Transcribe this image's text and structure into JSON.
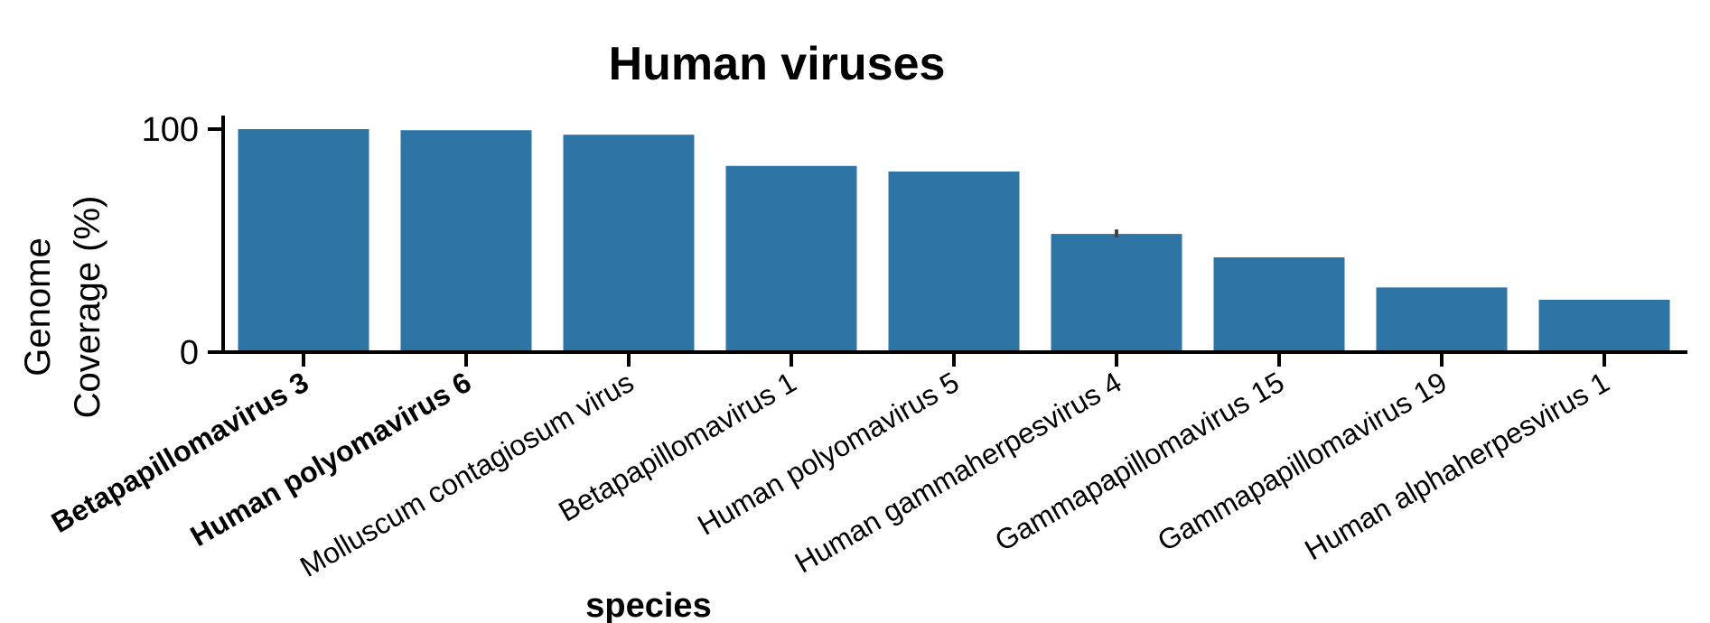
{
  "chart_data": {
    "type": "bar",
    "title": "Human viruses",
    "xlabel": "species",
    "ylabel_lines": [
      "Genome",
      "Coverage (%)"
    ],
    "ylim": [
      0,
      100
    ],
    "yticks": [
      0,
      100
    ],
    "bar_color": "#2e75a5",
    "categories": [
      "Betapapillomavirus 3",
      "Human polyomavirus 6",
      "Molluscum contagiosum virus",
      "Betapapillomavirus 1",
      "Human polyomavirus 5",
      "Human gammaherpesvirus 4",
      "Gammapapillomavirus 15",
      "Gammapapillomavirus 19",
      "Human alphaherpesvirus 1"
    ],
    "bold_categories": [
      "Betapapillomavirus 3",
      "Human polyomavirus 6"
    ],
    "values": [
      100,
      99.5,
      97.5,
      83.5,
      81,
      53,
      42.5,
      29,
      23.5
    ],
    "error_bars": [
      {
        "category": "Human gammaherpesvirus 4",
        "low": 51.5,
        "high": 55
      }
    ]
  }
}
